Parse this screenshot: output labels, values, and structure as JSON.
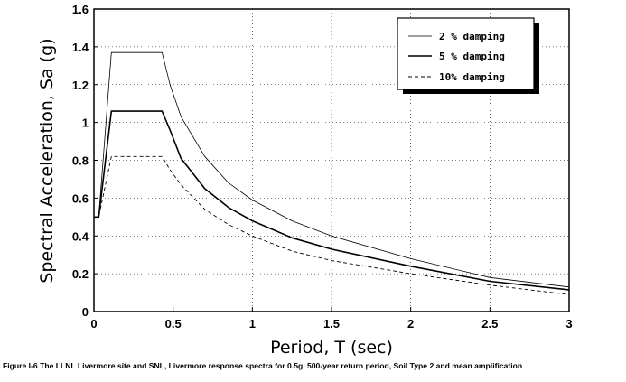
{
  "chart_data": {
    "type": "line",
    "xlabel": "Period, T (sec)",
    "ylabel": "Spectral Acceleration, Sa (g)",
    "xlim": [
      0,
      3
    ],
    "ylim": [
      0,
      1.6
    ],
    "x_ticks": [
      0,
      0.5,
      1,
      1.5,
      2,
      2.5,
      3
    ],
    "x_tick_labels": [
      "0",
      "0.5",
      "1",
      "1.5",
      "2",
      "2.5",
      "3"
    ],
    "y_ticks": [
      0,
      0.2,
      0.4,
      0.6,
      0.8,
      1,
      1.2,
      1.4,
      1.6
    ],
    "y_tick_labels": [
      "0",
      "0.2",
      "0.4",
      "0.6",
      "0.8",
      "1",
      "1.2",
      "1.4",
      "1.6"
    ],
    "grid": true,
    "legend_position": "top-right",
    "series": [
      {
        "name": "2 % damping",
        "style": "thin-solid",
        "x": [
          0,
          0.03,
          0.11,
          0.43,
          0.48,
          0.55,
          0.7,
          0.85,
          1.0,
          1.25,
          1.5,
          2.0,
          2.5,
          3.0
        ],
        "y": [
          0.5,
          0.5,
          1.37,
          1.37,
          1.2,
          1.03,
          0.82,
          0.68,
          0.59,
          0.48,
          0.4,
          0.28,
          0.18,
          0.13
        ]
      },
      {
        "name": "5 % damping",
        "style": "thick-solid",
        "x": [
          0,
          0.03,
          0.11,
          0.43,
          0.48,
          0.55,
          0.7,
          0.85,
          1.0,
          1.25,
          1.5,
          2.0,
          2.5,
          3.0
        ],
        "y": [
          0.5,
          0.5,
          1.06,
          1.06,
          0.96,
          0.81,
          0.65,
          0.55,
          0.48,
          0.39,
          0.33,
          0.24,
          0.16,
          0.115
        ]
      },
      {
        "name": "10% damping",
        "style": "dashed",
        "x": [
          0,
          0.03,
          0.11,
          0.43,
          0.48,
          0.55,
          0.7,
          0.85,
          1.0,
          1.25,
          1.5,
          2.0,
          2.5,
          3.0
        ],
        "y": [
          0.5,
          0.5,
          0.82,
          0.82,
          0.75,
          0.67,
          0.54,
          0.46,
          0.4,
          0.32,
          0.27,
          0.2,
          0.14,
          0.09
        ]
      }
    ]
  },
  "legend": {
    "item0": "2 % damping",
    "item1": "5 % damping",
    "item2": "10% damping"
  },
  "caption": "Figure I-6  The LLNL Livermore site and SNL, Livermore response spectra for 0.5g, 500-year return period, Soil Type 2 and mean amplification"
}
